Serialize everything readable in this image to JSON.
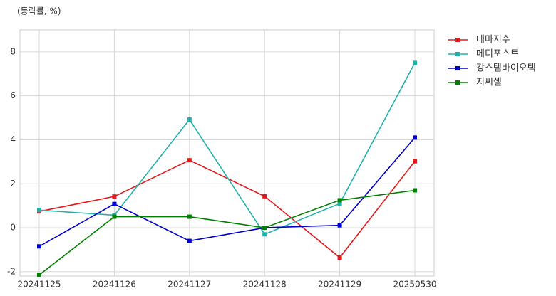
{
  "chart_data": {
    "type": "line",
    "subtitle": "(등락률, %)",
    "categories": [
      "20241125",
      "20241126",
      "20241127",
      "20241128",
      "20241129",
      "20250530"
    ],
    "series": [
      {
        "name": "테마지수",
        "color": "#e31a1c",
        "values": [
          0.74,
          1.42,
          3.07,
          1.43,
          -1.36,
          3.02
        ]
      },
      {
        "name": "메디포스트",
        "color": "#20b2aa",
        "values": [
          0.8,
          0.57,
          4.92,
          -0.3,
          1.1,
          7.5
        ]
      },
      {
        "name": "강스템바이오텍",
        "color": "#0000cc",
        "values": [
          -0.85,
          1.08,
          -0.6,
          0.0,
          0.11,
          4.1
        ]
      },
      {
        "name": "지씨셀",
        "color": "#008000",
        "values": [
          -2.15,
          0.5,
          0.5,
          0.0,
          1.25,
          1.7
        ]
      }
    ],
    "ylim": [
      -2.2,
      9
    ],
    "yticks": [
      -2,
      0,
      2,
      4,
      6,
      8
    ],
    "grid": true,
    "legend": "outside-upper-right"
  }
}
